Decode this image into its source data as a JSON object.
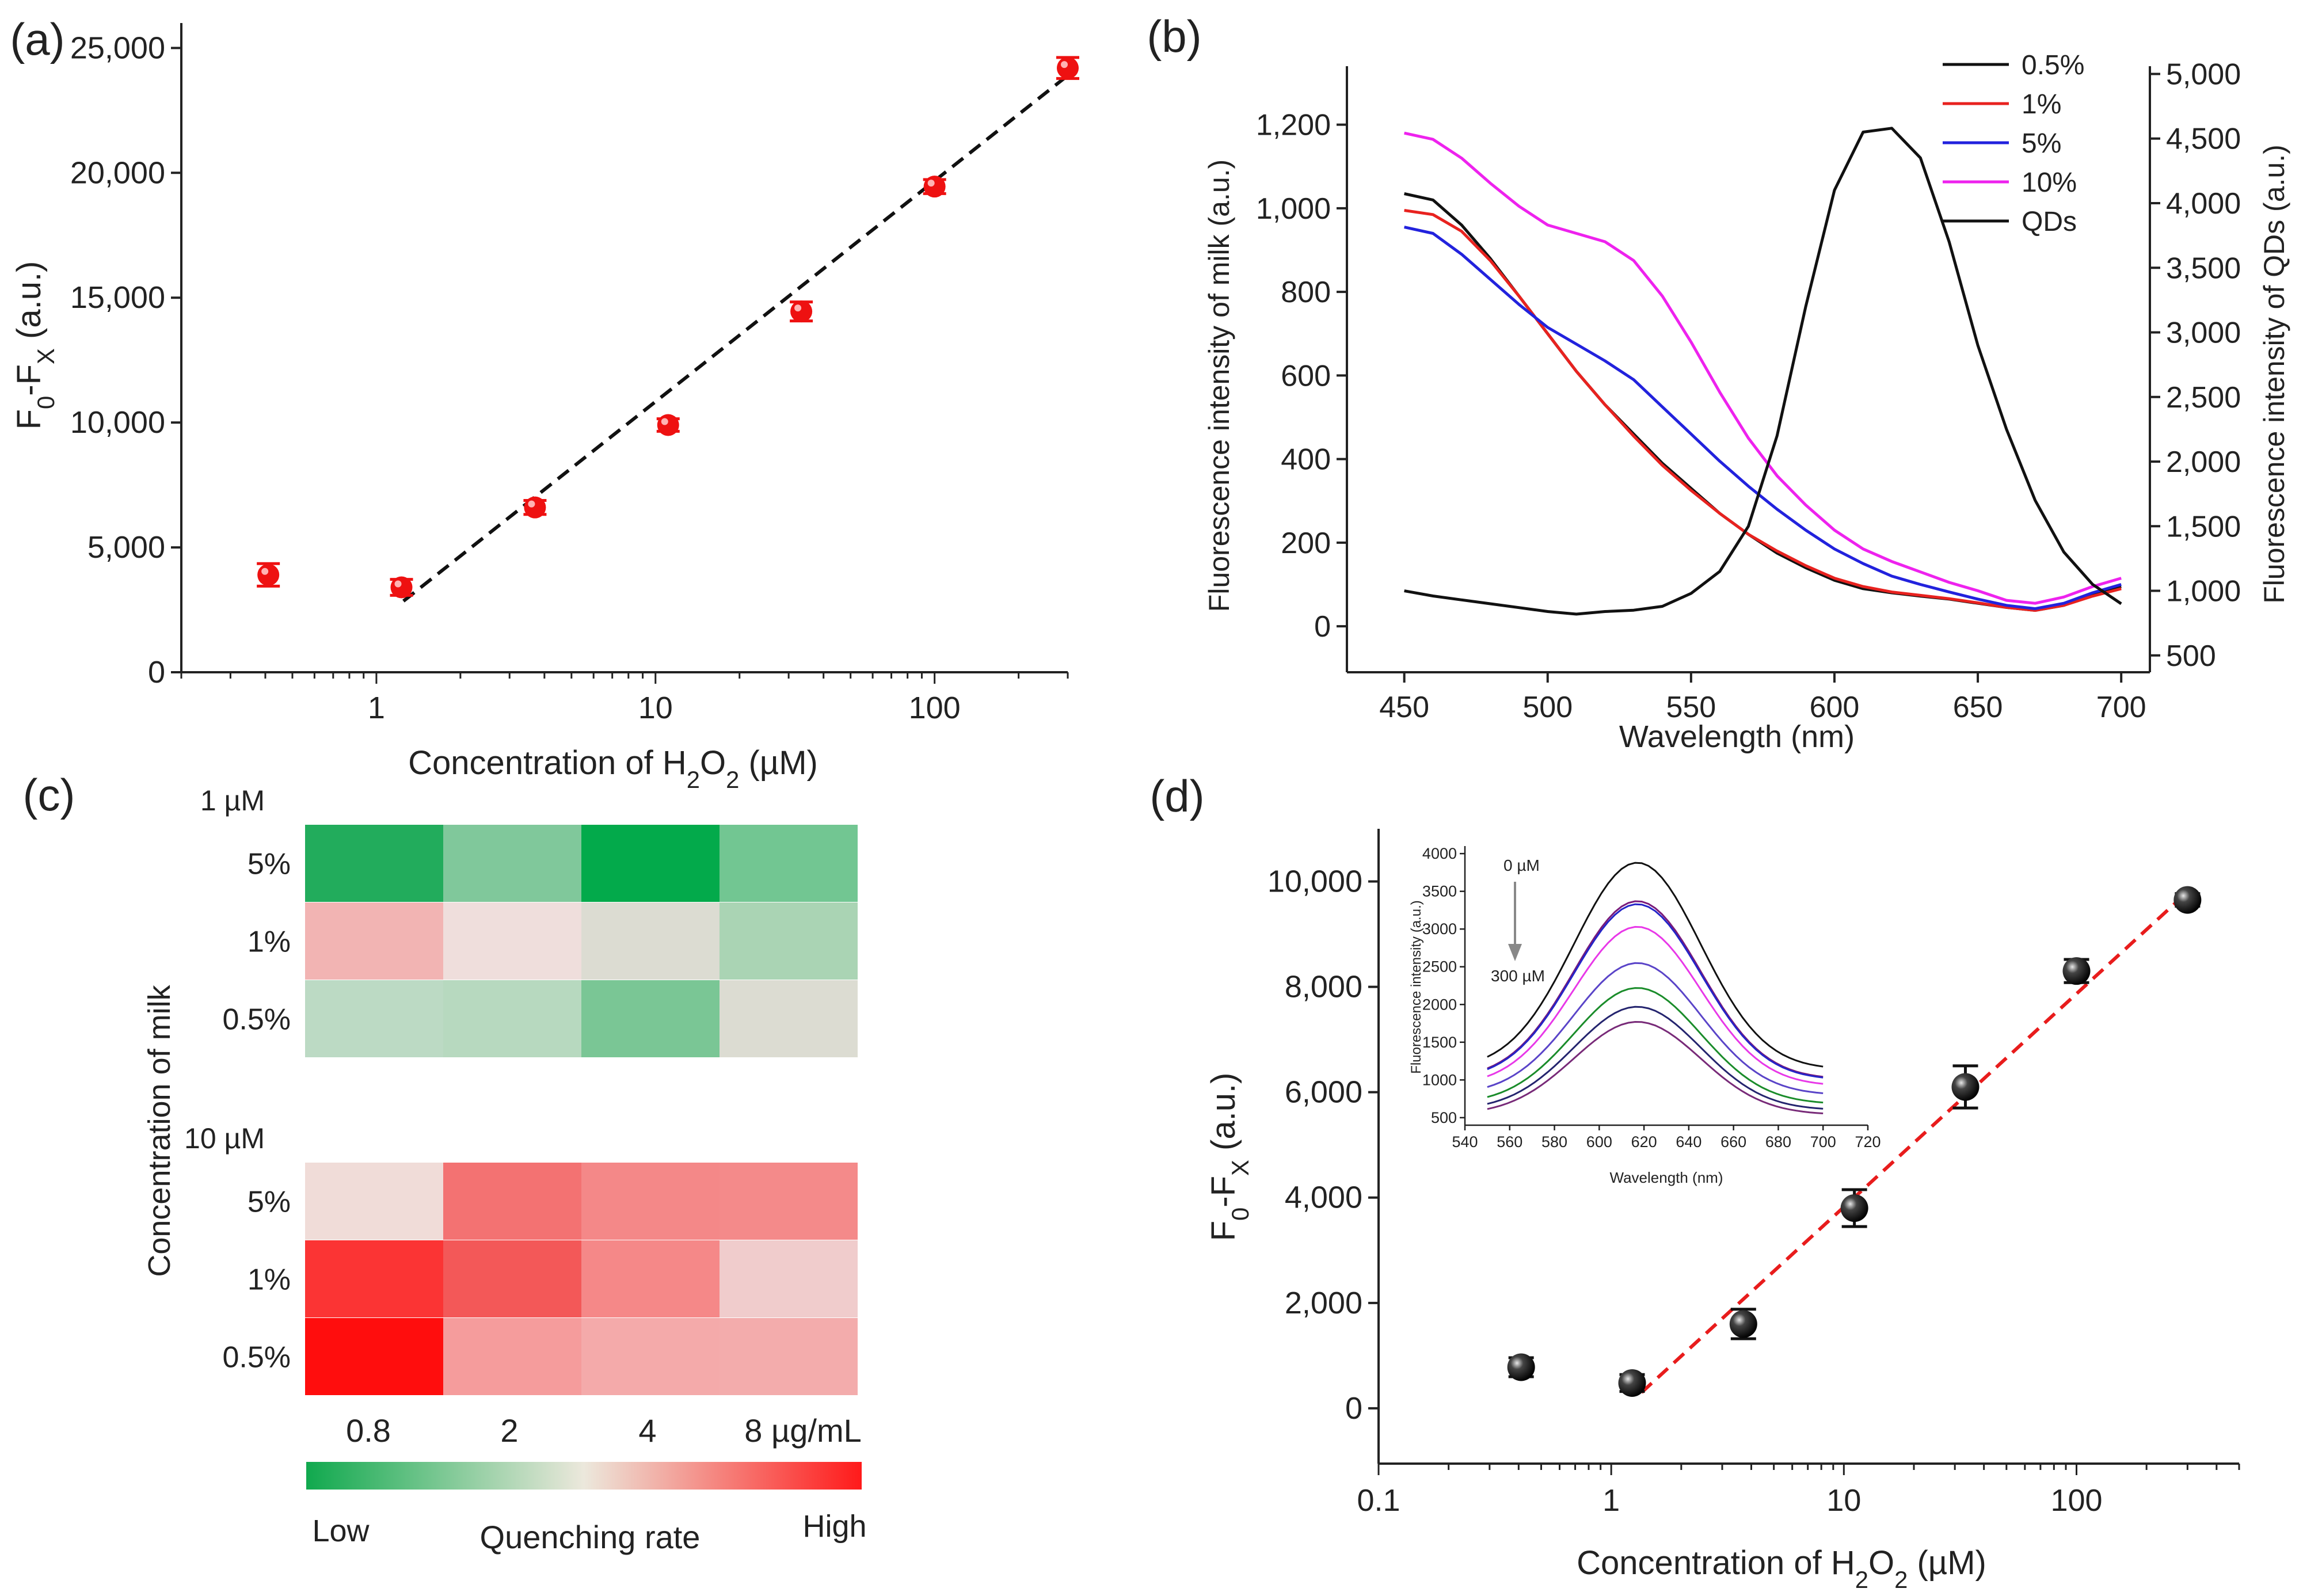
{
  "chart_data": [
    {
      "panel": "(a)",
      "type": "scatter",
      "xscale": "log",
      "xlabel_prefix": "Concentration of H",
      "xlabel_sub1": "2",
      "xlabel_mid": "O",
      "xlabel_sub2": "2",
      "xlabel_suffix": " (µM)",
      "ylabel_base1": "F",
      "ylabel_sub1": "0",
      "ylabel_mid": "-F",
      "ylabel_sub2": "X",
      "ylabel_suffix": " (a.u.)",
      "xlim": [
        0.2,
        300
      ],
      "ylim": [
        0,
        26000
      ],
      "xticks": [
        {
          "v": 1,
          "label": "1"
        },
        {
          "v": 10,
          "label": "10"
        },
        {
          "v": 100,
          "label": "100"
        }
      ],
      "yticks": [
        {
          "v": 0,
          "label": "0"
        },
        {
          "v": 5000,
          "label": "5,000"
        },
        {
          "v": 10000,
          "label": "10,000"
        },
        {
          "v": 15000,
          "label": "15,000"
        },
        {
          "v": 20000,
          "label": "20,000"
        },
        {
          "v": 25000,
          "label": "25,000"
        }
      ],
      "points": [
        {
          "x": 0.41,
          "y": 3900,
          "err": 450
        },
        {
          "x": 1.23,
          "y": 3400,
          "err": 320
        },
        {
          "x": 3.7,
          "y": 6600,
          "err": 280
        },
        {
          "x": 11.1,
          "y": 9900,
          "err": 250
        },
        {
          "x": 33.3,
          "y": 14450,
          "err": 380
        },
        {
          "x": 100,
          "y": 19450,
          "err": 280
        },
        {
          "x": 300,
          "y": 24200,
          "err": 420
        }
      ],
      "fit": {
        "x": [
          1.25,
          300
        ],
        "y": [
          2850,
          23900
        ]
      },
      "marker_color": "#ee1111",
      "fit_color": "#111111"
    },
    {
      "panel": "(b)",
      "type": "line",
      "xlabel": "Wavelength (nm)",
      "ylabel": "Fluorescence intensity of milk (a.u.)",
      "ylabel2": "Fluorescence intensity of QDs (a.u.)",
      "xlim": [
        430,
        710
      ],
      "ylim": [
        -110,
        1340
      ],
      "y2lim": [
        370,
        5060
      ],
      "xticks": [
        {
          "v": 450,
          "label": "450"
        },
        {
          "v": 500,
          "label": "500"
        },
        {
          "v": 550,
          "label": "550"
        },
        {
          "v": 600,
          "label": "600"
        },
        {
          "v": 650,
          "label": "650"
        },
        {
          "v": 700,
          "label": "700"
        }
      ],
      "yticks": [
        {
          "v": 0,
          "label": "0"
        },
        {
          "v": 200,
          "label": "200"
        },
        {
          "v": 400,
          "label": "400"
        },
        {
          "v": 600,
          "label": "600"
        },
        {
          "v": 800,
          "label": "800"
        },
        {
          "v": 1000,
          "label": "1,000"
        },
        {
          "v": 1200,
          "label": "1,200"
        }
      ],
      "y2ticks": [
        {
          "v": 500,
          "label": "500"
        },
        {
          "v": 1000,
          "label": "1,000"
        },
        {
          "v": 1500,
          "label": "1,500"
        },
        {
          "v": 2000,
          "label": "2,000"
        },
        {
          "v": 2500,
          "label": "2,500"
        },
        {
          "v": 3000,
          "label": "3,000"
        },
        {
          "v": 3500,
          "label": "3,500"
        },
        {
          "v": 4000,
          "label": "4,000"
        },
        {
          "v": 4500,
          "label": "4,500"
        },
        {
          "v": 5000,
          "label": "5,000"
        }
      ],
      "x": [
        450,
        460,
        470,
        480,
        490,
        500,
        510,
        520,
        530,
        540,
        550,
        560,
        570,
        580,
        590,
        600,
        610,
        620,
        630,
        640,
        650,
        660,
        670,
        680,
        690,
        700
      ],
      "series": [
        {
          "name": "0.5%",
          "color": "#111111",
          "axis": "left",
          "values": [
            1035,
            1020,
            960,
            880,
            790,
            700,
            610,
            530,
            460,
            390,
            330,
            270,
            220,
            175,
            140,
            110,
            90,
            80,
            72,
            65,
            55,
            45,
            38,
            50,
            75,
            95
          ]
        },
        {
          "name": "1%",
          "color": "#e8221f",
          "axis": "left",
          "values": [
            995,
            985,
            945,
            875,
            790,
            700,
            610,
            530,
            455,
            385,
            325,
            270,
            220,
            180,
            145,
            115,
            95,
            82,
            74,
            66,
            56,
            45,
            38,
            50,
            72,
            90
          ]
        },
        {
          "name": "5%",
          "color": "#2222dd",
          "axis": "left",
          "values": [
            955,
            940,
            890,
            830,
            770,
            715,
            675,
            635,
            590,
            525,
            460,
            395,
            335,
            280,
            230,
            185,
            150,
            120,
            100,
            82,
            65,
            50,
            42,
            55,
            80,
            100
          ]
        },
        {
          "name": "10%",
          "color": "#ee22ee",
          "axis": "left",
          "values": [
            1180,
            1165,
            1120,
            1060,
            1005,
            960,
            940,
            920,
            875,
            790,
            680,
            560,
            450,
            360,
            290,
            230,
            185,
            155,
            130,
            105,
            85,
            62,
            55,
            70,
            95,
            115
          ]
        },
        {
          "name": "QDs",
          "color": "#111111",
          "axis": "right",
          "values": [
            1000,
            960,
            930,
            900,
            870,
            840,
            820,
            840,
            850,
            880,
            980,
            1150,
            1500,
            2200,
            3200,
            4100,
            4550,
            4580,
            4350,
            3700,
            2900,
            2250,
            1700,
            1300,
            1050,
            900
          ]
        }
      ]
    },
    {
      "panel": "(c)",
      "type": "heatmap",
      "ylabel": "Concentration of milk",
      "colorbar_title": "Quenching rate",
      "colorbar_low": "Low",
      "colorbar_high": "High",
      "colorbar_colors": [
        "#10a94e",
        "#ece8dc",
        "#ff1a1a"
      ],
      "columns": [
        "0.8",
        "2",
        "4",
        "8 µg/mL"
      ],
      "groups": [
        {
          "label": "1 µM",
          "rows": [
            {
              "label": "5%",
              "colors": [
                "#22ac5c",
                "#80c89b",
                "#03aa4b",
                "#72c692"
              ]
            },
            {
              "label": "1%",
              "colors": [
                "#f2b4b3",
                "#efdedc",
                "#dcdcd2",
                "#aad4b4"
              ]
            },
            {
              "label": "0.5%",
              "colors": [
                "#bcdac4",
                "#b7d9bf",
                "#7ac695",
                "#dcdcd2"
              ]
            }
          ]
        },
        {
          "label": "10 µM",
          "rows": [
            {
              "label": "5%",
              "colors": [
                "#f0dcd8",
                "#f37272",
                "#f48888",
                "#f48a8a"
              ]
            },
            {
              "label": "1%",
              "colors": [
                "#fb3434",
                "#f35858",
                "#f58888",
                "#f0cccc"
              ]
            },
            {
              "label": "0.5%",
              "colors": [
                "#ff0d0d",
                "#f59c9c",
                "#f4aaaa",
                "#f3acac"
              ]
            }
          ]
        }
      ]
    },
    {
      "panel": "(d)",
      "type": "scatter",
      "xscale": "log",
      "xlabel_prefix": "Concentration of H",
      "xlabel_sub1": "2",
      "xlabel_mid": "O",
      "xlabel_sub2": "2",
      "xlabel_suffix": " (µM)",
      "ylabel_base1": "F",
      "ylabel_sub1": "0",
      "ylabel_mid": "-F",
      "ylabel_sub2": "X",
      "ylabel_suffix": " (a.u.)",
      "xlim": [
        0.1,
        500
      ],
      "ylim": [
        -1050,
        11000
      ],
      "xticks": [
        {
          "v": 0.1,
          "label": "0.1"
        },
        {
          "v": 1,
          "label": "1"
        },
        {
          "v": 10,
          "label": "10"
        },
        {
          "v": 100,
          "label": "100"
        }
      ],
      "yticks": [
        {
          "v": 0,
          "label": "0"
        },
        {
          "v": 2000,
          "label": "2,000"
        },
        {
          "v": 4000,
          "label": "4,000"
        },
        {
          "v": 6000,
          "label": "6,000"
        },
        {
          "v": 8000,
          "label": "8,000"
        },
        {
          "v": 10000,
          "label": "10,000"
        }
      ],
      "points": [
        {
          "x": 0.41,
          "y": 780,
          "err": 180
        },
        {
          "x": 1.23,
          "y": 480,
          "err": 160
        },
        {
          "x": 3.7,
          "y": 1600,
          "err": 280
        },
        {
          "x": 11.1,
          "y": 3800,
          "err": 350
        },
        {
          "x": 33.3,
          "y": 6100,
          "err": 400
        },
        {
          "x": 100,
          "y": 8300,
          "err": 220
        },
        {
          "x": 300,
          "y": 9650,
          "err": 120
        }
      ],
      "fit": {
        "x": [
          1.35,
          300
        ],
        "y": [
          300,
          9800
        ]
      },
      "marker_color": "#111111",
      "fit_color": "#e81c1c",
      "inset": {
        "type": "line",
        "xlabel": "Wavelength (nm)",
        "ylabel": "Fluorescence intensity (a.u.)",
        "xlim": [
          540,
          720
        ],
        "ylim": [
          400,
          4100
        ],
        "xticks": [
          {
            "v": 540,
            "label": "540"
          },
          {
            "v": 560,
            "label": "560"
          },
          {
            "v": 580,
            "label": "580"
          },
          {
            "v": 600,
            "label": "600"
          },
          {
            "v": 620,
            "label": "620"
          },
          {
            "v": 640,
            "label": "640"
          },
          {
            "v": 660,
            "label": "660"
          },
          {
            "v": 680,
            "label": "680"
          },
          {
            "v": 700,
            "label": "700"
          },
          {
            "v": 720,
            "label": "720"
          }
        ],
        "yticks": [
          {
            "v": 500,
            "label": "500"
          },
          {
            "v": 1000,
            "label": "1000"
          },
          {
            "v": 1500,
            "label": "1500"
          },
          {
            "v": 2000,
            "label": "2000"
          },
          {
            "v": 2500,
            "label": "2500"
          },
          {
            "v": 3000,
            "label": "3000"
          },
          {
            "v": 3500,
            "label": "3500"
          },
          {
            "v": 4000,
            "label": "4000"
          }
        ],
        "annotation_top": "0 µM",
        "annotation_bottom": "300 µM",
        "curves": [
          {
            "color": "#111111",
            "peak": 3880,
            "base": 1140,
            "center": 617
          },
          {
            "color": "#7a1a7a",
            "peak": 3370,
            "base": 1010,
            "center": 617
          },
          {
            "color": "#2424c8",
            "peak": 3330,
            "base": 1000,
            "center": 617
          },
          {
            "color": "#e838e8",
            "peak": 3030,
            "base": 920,
            "center": 617
          },
          {
            "color": "#5a44c8",
            "peak": 2550,
            "base": 800,
            "center": 617
          },
          {
            "color": "#1a8c2a",
            "peak": 2220,
            "base": 680,
            "center": 617
          },
          {
            "color": "#24246e",
            "peak": 1970,
            "base": 600,
            "center": 617
          },
          {
            "color": "#782a78",
            "peak": 1770,
            "base": 540,
            "center": 617
          }
        ]
      }
    }
  ]
}
